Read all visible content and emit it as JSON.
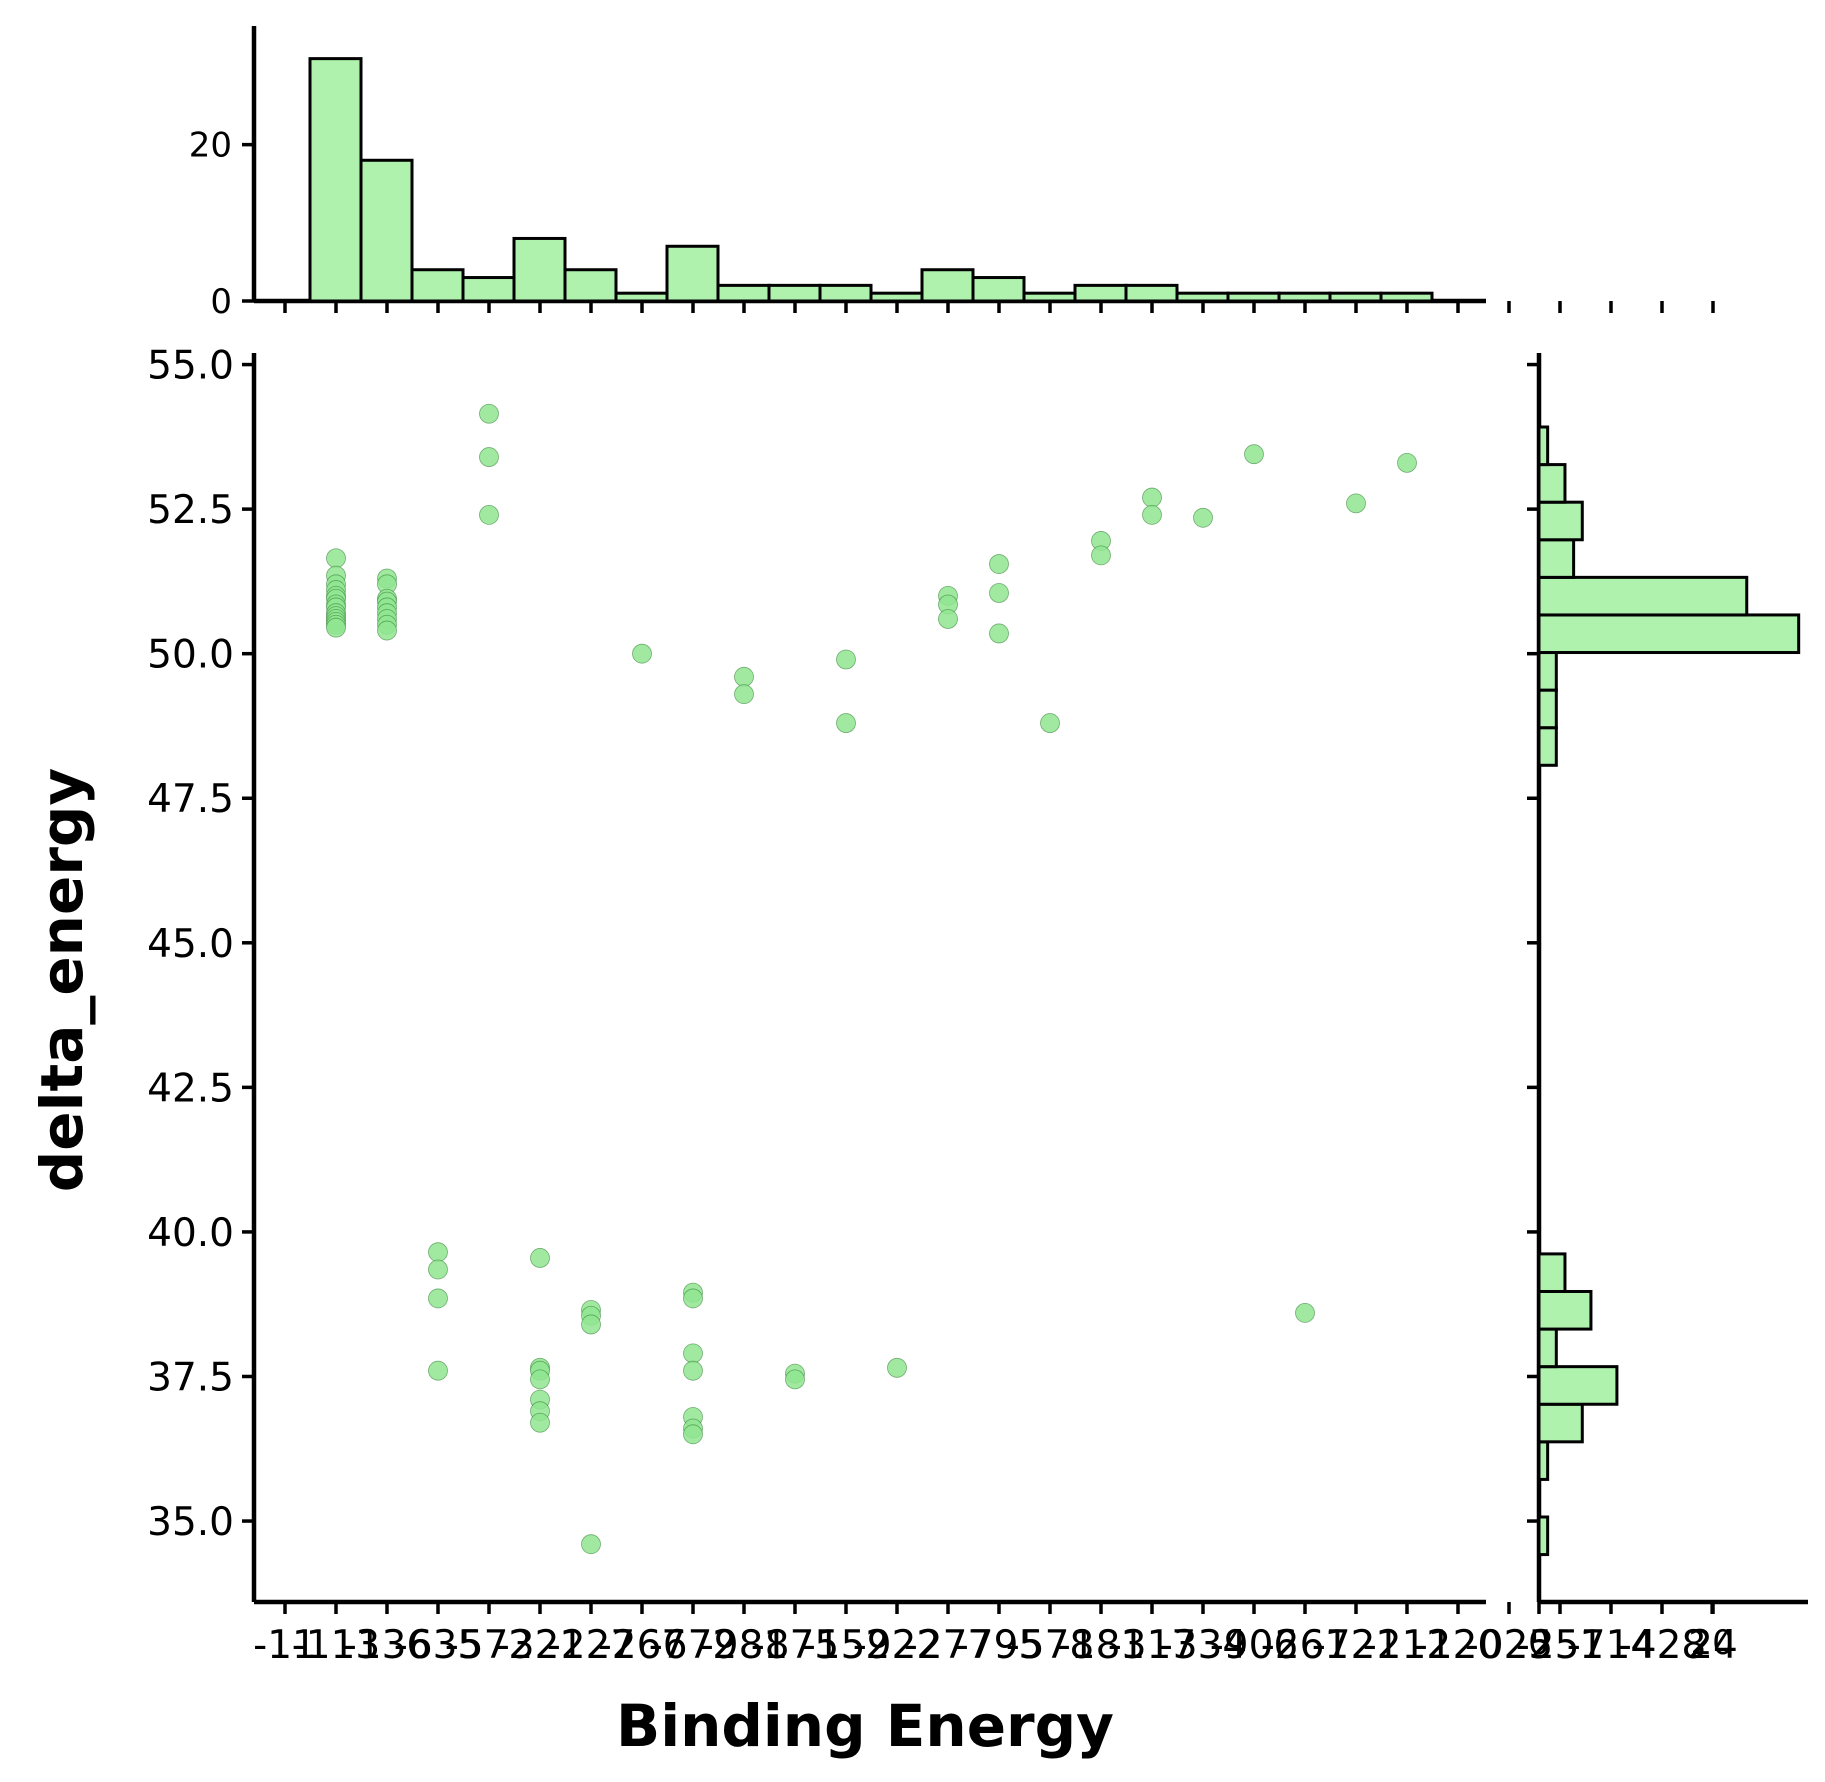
{
  "chart_data": [
    {
      "type": "scatter",
      "xlabel": "Binding Energy",
      "ylabel": "delta_energy",
      "ylim": [
        33.6,
        55.2
      ],
      "y_ticks": [
        "35.0",
        "37.5",
        "40.0",
        "42.5",
        "45.0",
        "47.5",
        "50.0",
        "52.5",
        "55.0"
      ],
      "x_tick_labels": [
        "-11",
        "-113",
        "-136",
        "-635",
        "-572",
        "-321",
        "-227",
        "-267",
        "-672",
        "-981",
        "-875",
        "-152",
        "-922",
        "-277",
        "-795",
        "-578",
        "-181",
        "-317",
        "-334",
        "-906",
        "-261",
        "-721",
        "-212",
        "-120",
        "-025",
        "-251",
        "-714",
        "-428",
        "24"
      ],
      "grid": false,
      "points": [
        {
          "x": 1,
          "y": 51.65
        },
        {
          "x": 1,
          "y": 51.35
        },
        {
          "x": 1,
          "y": 51.2
        },
        {
          "x": 1,
          "y": 51.1
        },
        {
          "x": 1,
          "y": 51.0
        },
        {
          "x": 1,
          "y": 50.95
        },
        {
          "x": 1,
          "y": 50.85
        },
        {
          "x": 1,
          "y": 50.8
        },
        {
          "x": 1,
          "y": 50.7
        },
        {
          "x": 1,
          "y": 50.65
        },
        {
          "x": 1,
          "y": 50.6
        },
        {
          "x": 1,
          "y": 50.55
        },
        {
          "x": 1,
          "y": 50.5
        },
        {
          "x": 1,
          "y": 50.45
        },
        {
          "x": 2,
          "y": 51.3
        },
        {
          "x": 2,
          "y": 51.2
        },
        {
          "x": 2,
          "y": 50.95
        },
        {
          "x": 2,
          "y": 50.9
        },
        {
          "x": 2,
          "y": 50.8
        },
        {
          "x": 2,
          "y": 50.7
        },
        {
          "x": 2,
          "y": 50.6
        },
        {
          "x": 2,
          "y": 50.5
        },
        {
          "x": 2,
          "y": 50.4
        },
        {
          "x": 3,
          "y": 39.65
        },
        {
          "x": 3,
          "y": 39.35
        },
        {
          "x": 3,
          "y": 38.85
        },
        {
          "x": 3,
          "y": 37.6
        },
        {
          "x": 4,
          "y": 54.15
        },
        {
          "x": 4,
          "y": 53.4
        },
        {
          "x": 4,
          "y": 52.4
        },
        {
          "x": 5,
          "y": 39.55
        },
        {
          "x": 5,
          "y": 37.65
        },
        {
          "x": 5,
          "y": 37.6
        },
        {
          "x": 5,
          "y": 37.45
        },
        {
          "x": 5,
          "y": 37.1
        },
        {
          "x": 5,
          "y": 36.9
        },
        {
          "x": 5,
          "y": 36.7
        },
        {
          "x": 6,
          "y": 38.65
        },
        {
          "x": 6,
          "y": 38.55
        },
        {
          "x": 6,
          "y": 38.4
        },
        {
          "x": 6,
          "y": 34.6
        },
        {
          "x": 7,
          "y": 50.0
        },
        {
          "x": 8,
          "y": 38.95
        },
        {
          "x": 8,
          "y": 38.85
        },
        {
          "x": 8,
          "y": 37.9
        },
        {
          "x": 8,
          "y": 37.6
        },
        {
          "x": 8,
          "y": 36.8
        },
        {
          "x": 8,
          "y": 36.6
        },
        {
          "x": 8,
          "y": 36.5
        },
        {
          "x": 9,
          "y": 49.6
        },
        {
          "x": 9,
          "y": 49.3
        },
        {
          "x": 10,
          "y": 37.55
        },
        {
          "x": 10,
          "y": 37.45
        },
        {
          "x": 11,
          "y": 49.9
        },
        {
          "x": 11,
          "y": 48.8
        },
        {
          "x": 12,
          "y": 37.65
        },
        {
          "x": 13,
          "y": 51.0
        },
        {
          "x": 13,
          "y": 50.85
        },
        {
          "x": 13,
          "y": 50.6
        },
        {
          "x": 14,
          "y": 51.55
        },
        {
          "x": 14,
          "y": 51.05
        },
        {
          "x": 14,
          "y": 50.35
        },
        {
          "x": 15,
          "y": 48.8
        },
        {
          "x": 16,
          "y": 51.95
        },
        {
          "x": 16,
          "y": 51.7
        },
        {
          "x": 17,
          "y": 52.7
        },
        {
          "x": 17,
          "y": 52.4
        },
        {
          "x": 18,
          "y": 52.35
        },
        {
          "x": 19,
          "y": 53.45
        },
        {
          "x": 20,
          "y": 38.6
        },
        {
          "x": 21,
          "y": 52.6
        },
        {
          "x": 22,
          "y": 53.3
        }
      ]
    },
    {
      "type": "bar",
      "role": "top-marginal-histogram",
      "y_ticks": [
        "0",
        "20"
      ],
      "values": [
        31,
        18,
        4,
        3,
        8,
        4,
        1,
        7,
        2,
        2,
        2,
        1,
        4,
        3,
        1,
        2,
        2,
        1,
        1,
        1,
        1,
        1
      ]
    },
    {
      "type": "bar",
      "role": "right-marginal-histogram",
      "x_ticks": [
        "0",
        "20"
      ],
      "bins": [
        {
          "from": 34.42,
          "to": 35.07,
          "count": 1
        },
        {
          "from": 35.07,
          "to": 35.72,
          "count": 0
        },
        {
          "from": 35.72,
          "to": 36.37,
          "count": 1
        },
        {
          "from": 36.37,
          "to": 37.02,
          "count": 5
        },
        {
          "from": 37.02,
          "to": 37.67,
          "count": 9
        },
        {
          "from": 37.67,
          "to": 38.32,
          "count": 2
        },
        {
          "from": 38.32,
          "to": 38.97,
          "count": 6
        },
        {
          "from": 38.97,
          "to": 39.62,
          "count": 3
        },
        {
          "from": 48.07,
          "to": 48.72,
          "count": 2
        },
        {
          "from": 48.72,
          "to": 49.37,
          "count": 2
        },
        {
          "from": 49.37,
          "to": 50.02,
          "count": 2
        },
        {
          "from": 50.02,
          "to": 50.67,
          "count": 30
        },
        {
          "from": 50.67,
          "to": 51.32,
          "count": 24
        },
        {
          "from": 51.32,
          "to": 51.97,
          "count": 4
        },
        {
          "from": 51.97,
          "to": 52.62,
          "count": 5
        },
        {
          "from": 52.62,
          "to": 53.27,
          "count": 3
        },
        {
          "from": 53.27,
          "to": 53.92,
          "count": 1
        }
      ]
    }
  ],
  "colors": {
    "fill": "#aef2ae",
    "point": "#90e590",
    "edge": "#000000"
  }
}
